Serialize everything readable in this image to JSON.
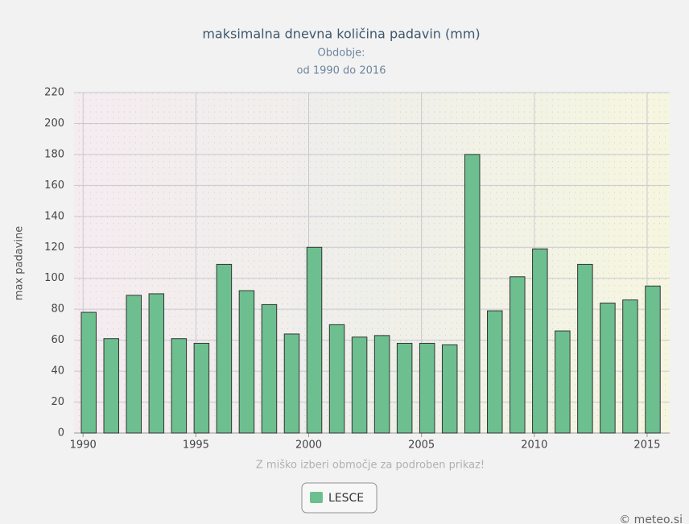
{
  "chart_data": {
    "type": "bar",
    "title": "maksimalna dnevna količina padavin (mm)",
    "subtitle": [
      "Obdobje:",
      "od 1990 do 2016"
    ],
    "y_label": "max padavine",
    "note": "Z miško izberi območje za podroben prikaz!",
    "credit": "© meteo.si",
    "x": [
      1990,
      1991,
      1992,
      1993,
      1994,
      1995,
      1996,
      1997,
      1998,
      1999,
      2000,
      2001,
      2002,
      2003,
      2004,
      2005,
      2006,
      2007,
      2008,
      2009,
      2010,
      2011,
      2012,
      2013,
      2014,
      2015
    ],
    "series": [
      {
        "name": "LESCE",
        "color": "#6dbf8f",
        "values": [
          78,
          61,
          89,
          90,
          61,
          58,
          109,
          92,
          83,
          64,
          120,
          70,
          62,
          63,
          58,
          58,
          57,
          180,
          79,
          101,
          119,
          66,
          109,
          84,
          86,
          95
        ]
      }
    ],
    "xlim": [
      1989.6,
      2016
    ],
    "xticks": [
      1990,
      1995,
      2000,
      2005,
      2010,
      2015
    ],
    "ylim": [
      0,
      220
    ],
    "yticks": [
      0,
      20,
      40,
      60,
      80,
      100,
      120,
      140,
      160,
      180,
      200,
      220
    ],
    "grid": true
  }
}
